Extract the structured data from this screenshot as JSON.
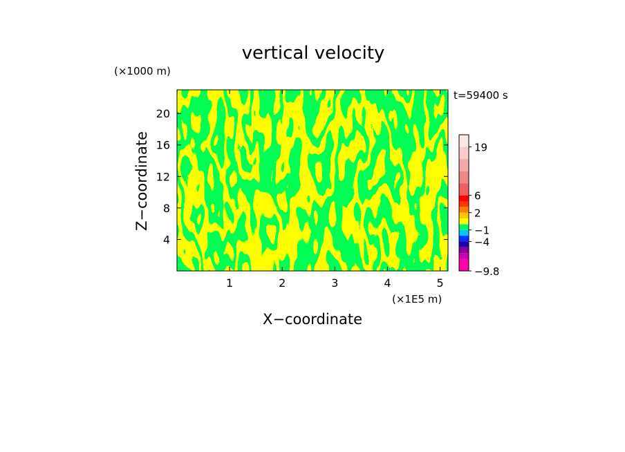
{
  "chart_data": {
    "type": "heatmap",
    "title": "vertical velocity",
    "time_label": "t=59400 s",
    "xlabel": "X−coordinate",
    "ylabel": "Z−coordinate",
    "x_unit": "(×1E5 m)",
    "y_unit": "(×1000 m)",
    "x_ticks": [
      "1",
      "2",
      "3",
      "4",
      "5"
    ],
    "y_ticks": [
      "4",
      "8",
      "12",
      "16",
      "20"
    ],
    "xlim": [
      0,
      5.15
    ],
    "ylim": [
      0,
      23
    ],
    "field_colors": {
      "positive": "#ffff00",
      "negative": "#00ff55"
    },
    "colorbar": {
      "labels": [
        {
          "text": "19",
          "value": 19
        },
        {
          "text": "6",
          "value": 6
        },
        {
          "text": "2",
          "value": 2
        },
        {
          "text": "−1",
          "value": -1
        },
        {
          "text": "−4",
          "value": -4
        },
        {
          "text": "−9.8",
          "value": -9.8
        }
      ],
      "levels": [
        {
          "color": "#ff00aa"
        },
        {
          "color": "#cc00aa"
        },
        {
          "color": "#880099"
        },
        {
          "color": "#2200aa"
        },
        {
          "color": "#0033ff"
        },
        {
          "color": "#00c8ff"
        },
        {
          "color": "#00ff55"
        },
        {
          "color": "#ffff00"
        },
        {
          "color": "#ffc800"
        },
        {
          "color": "#ff8000"
        },
        {
          "color": "#ff3300"
        },
        {
          "color": "#ff0000"
        },
        {
          "color": "#ee6060"
        },
        {
          "color": "#f08888"
        },
        {
          "color": "#f4aaaa"
        },
        {
          "color": "#f8cccc"
        },
        {
          "color": "#fce6e6"
        }
      ]
    }
  }
}
